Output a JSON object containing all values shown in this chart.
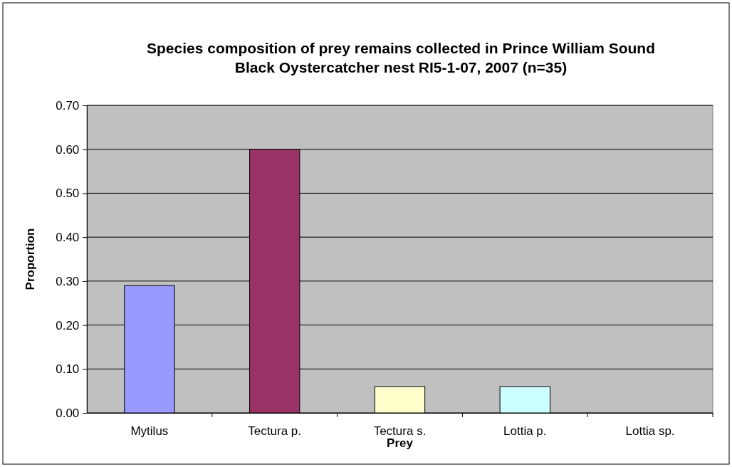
{
  "chart_data": {
    "type": "bar",
    "title": "Species composition of prey remains collected in Prince William Sound Black Oystercatcher nest RI5-1-07, 2007 (n=35)",
    "xlabel": "Prey",
    "ylabel": "Proportion",
    "categories": [
      "Mytilus",
      "Tectura p.",
      "Tectura s.",
      "Lottia p.",
      "Lottia sp."
    ],
    "values": [
      0.29,
      0.6,
      0.06,
      0.06,
      0
    ],
    "colors": [
      "#9999ff",
      "#993366",
      "#ffffcc",
      "#ccffff",
      "#660066"
    ],
    "ylim": [
      0,
      0.7
    ],
    "yticks": [
      {
        "value": 0,
        "label": "0.00"
      },
      {
        "value": 0.1,
        "label": "0.10"
      },
      {
        "value": 0.2,
        "label": "0.20"
      },
      {
        "value": 0.3,
        "label": "0.30"
      },
      {
        "value": 0.4,
        "label": "0.40"
      },
      {
        "value": 0.5,
        "label": "0.50"
      },
      {
        "value": 0.6,
        "label": "0.60"
      },
      {
        "value": 0.7,
        "label": "0.70"
      }
    ],
    "grid": "y"
  }
}
